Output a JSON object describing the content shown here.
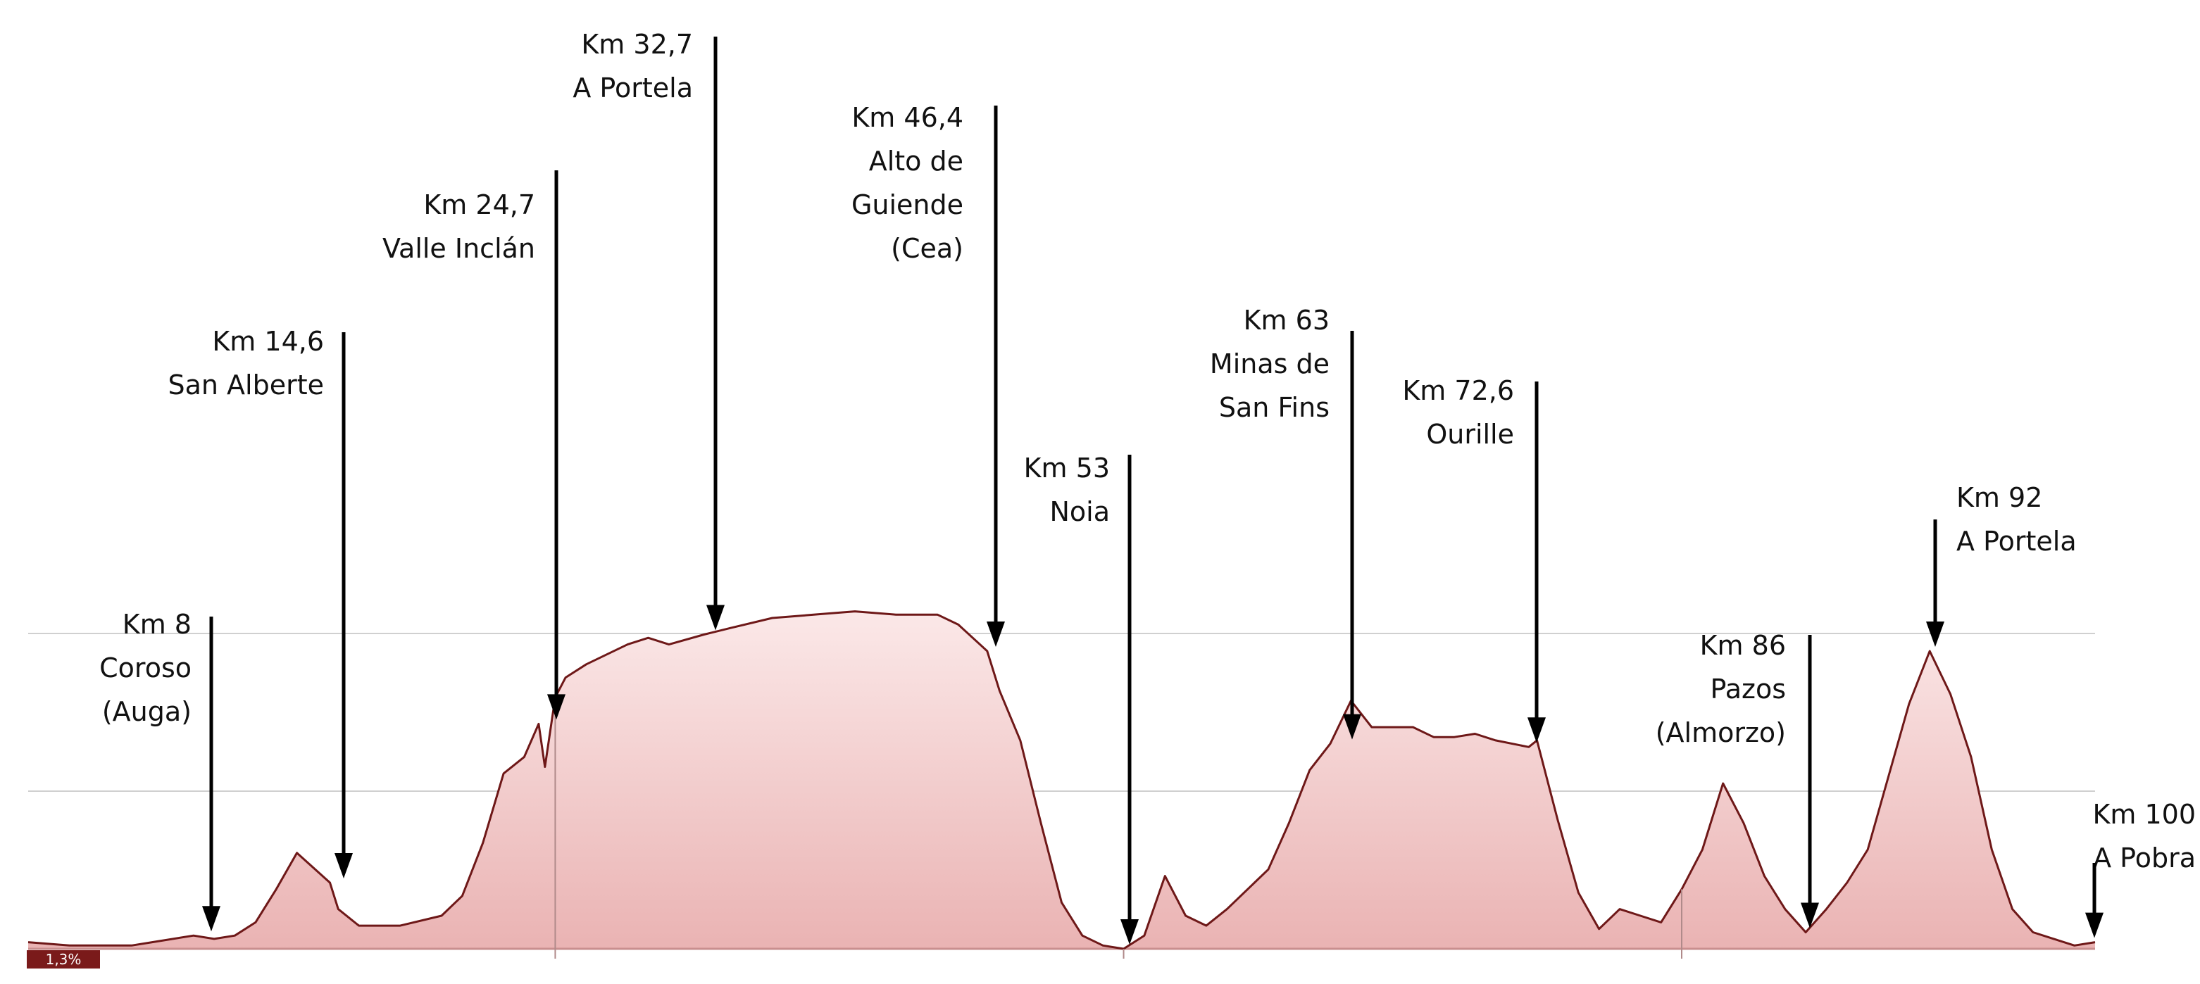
{
  "chart_data": {
    "type": "area",
    "title": "",
    "xlabel": "",
    "ylabel": "",
    "xlim": [
      0,
      100
    ],
    "grid": true,
    "colors": {
      "fill": "#f2c4c4",
      "line": "#6e1818",
      "grid": "#d0d0d0",
      "arrow": "#000000"
    },
    "badge": "1,3%",
    "x": [
      0,
      2,
      3,
      5,
      6,
      8,
      9,
      10,
      11,
      12,
      13,
      14.6,
      15,
      16,
      18,
      20,
      21,
      22,
      23,
      24,
      24.7,
      25,
      25.5,
      26,
      27,
      28,
      29,
      30,
      31,
      32.7,
      34,
      36,
      38,
      40,
      42,
      44,
      45,
      46.4,
      47,
      48,
      49,
      50,
      51,
      52,
      53,
      54,
      55,
      56,
      57,
      58,
      59,
      60,
      61,
      62,
      63,
      64,
      65,
      66,
      67,
      68,
      69,
      70,
      71,
      72.6,
      73,
      74,
      75,
      76,
      77,
      78,
      79,
      80,
      81,
      82,
      83,
      84,
      85,
      86,
      87,
      88,
      89,
      90,
      91,
      92,
      93,
      94,
      95,
      96,
      97,
      98,
      99,
      100
    ],
    "y": [
      2,
      1,
      1,
      1,
      2,
      4,
      3,
      4,
      8,
      18,
      29,
      20,
      12,
      7,
      7,
      10,
      16,
      32,
      53,
      58,
      68,
      55,
      76,
      82,
      86,
      89,
      92,
      94,
      92,
      95,
      97,
      100,
      101,
      102,
      101,
      101,
      98,
      90,
      78,
      63,
      38,
      14,
      4,
      1,
      0,
      4,
      22,
      10,
      7,
      12,
      18,
      24,
      38,
      54,
      62,
      75,
      67,
      67,
      67,
      64,
      64,
      65,
      63,
      61,
      63,
      39,
      17,
      6,
      12,
      10,
      8,
      18,
      30,
      50,
      38,
      22,
      12,
      5,
      12,
      20,
      30,
      52,
      74,
      90,
      77,
      58,
      30,
      12,
      5,
      3,
      1,
      2
    ],
    "annotations": [
      {
        "km": 8,
        "lines": [
          "Km 8",
          "Coroso",
          "(Auga)"
        ]
      },
      {
        "km": 14.6,
        "lines": [
          "Km 14,6",
          "San Alberte"
        ]
      },
      {
        "km": 24.7,
        "lines": [
          "Km 24,7",
          "Valle Inclán"
        ]
      },
      {
        "km": 32.7,
        "lines": [
          "Km 32,7",
          "A Portela"
        ]
      },
      {
        "km": 46.4,
        "lines": [
          "Km 46,4",
          "Alto de",
          "Guiende",
          "(Cea)"
        ]
      },
      {
        "km": 53,
        "lines": [
          "Km 53",
          "Noia"
        ]
      },
      {
        "km": 63,
        "lines": [
          "Km 63",
          "Minas de",
          "San Fins"
        ]
      },
      {
        "km": 72.6,
        "lines": [
          "Km 72,6",
          "Ourille"
        ]
      },
      {
        "km": 86,
        "lines": [
          "Km 86",
          "Pazos",
          "(Almorzo)"
        ]
      },
      {
        "km": 92,
        "lines": [
          "Km 92",
          "A Portela"
        ]
      },
      {
        "km": 100,
        "lines": [
          "Km 100",
          "A Pobra"
        ]
      }
    ]
  }
}
